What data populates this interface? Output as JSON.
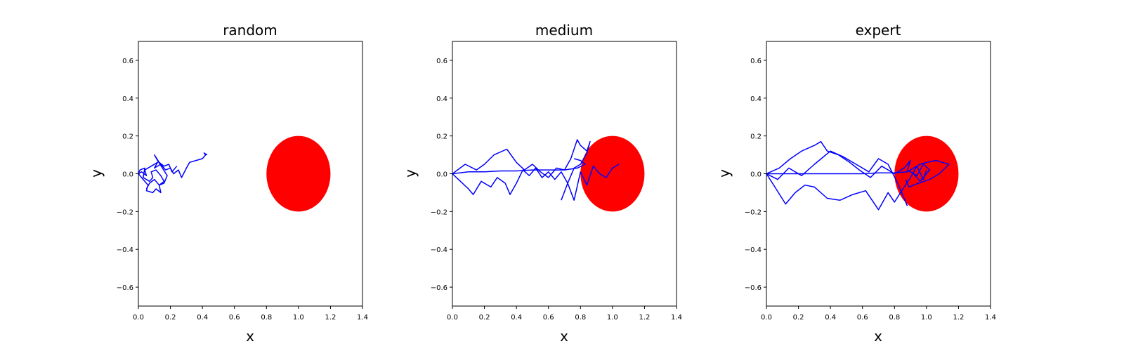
{
  "figure": {
    "background": "#ffffff"
  },
  "chart_data": [
    {
      "type": "line",
      "title": "random",
      "xlabel": "x",
      "ylabel": "y",
      "xlim": [
        0.0,
        1.4
      ],
      "ylim": [
        -0.7,
        0.7
      ],
      "xticks": [
        0.0,
        0.2,
        0.4,
        0.6,
        0.8,
        1.0,
        1.2,
        1.4
      ],
      "xtick_labels": [
        "0.0",
        "0.2",
        "0.4",
        "0.6",
        "0.8",
        "1.0",
        "1.2",
        "1.4"
      ],
      "yticks": [
        0.6,
        0.4,
        0.2,
        0.0,
        -0.2,
        -0.4,
        -0.6
      ],
      "ytick_labels": [
        "0.6",
        "0.4",
        "0.2",
        "0.0",
        "−0.2",
        "−0.4",
        "−0.6"
      ],
      "grid": false,
      "target": {
        "shape": "circle",
        "center": [
          1.0,
          0.0
        ],
        "radius": 0.2,
        "color": "#ff0000"
      },
      "line_color": "#0000ff",
      "series": [
        {
          "x": [
            0.0,
            0.02,
            0.05,
            0.04,
            0.08,
            0.12,
            0.1,
            0.14,
            0.17,
            0.2,
            0.22,
            0.25,
            0.27,
            0.3,
            0.32,
            0.36,
            0.4,
            0.42,
            0.41,
            0.43
          ],
          "y": [
            0.0,
            0.01,
            -0.01,
            0.02,
            0.04,
            0.06,
            0.03,
            0.05,
            0.02,
            0.03,
            0.0,
            0.02,
            -0.02,
            0.03,
            0.06,
            0.07,
            0.08,
            0.1,
            0.11,
            0.1
          ]
        },
        {
          "x": [
            0.0,
            0.03,
            0.06,
            0.05,
            0.09,
            0.11,
            0.14,
            0.13,
            0.16,
            0.18,
            0.15,
            0.12,
            0.1,
            0.13,
            0.16,
            0.19,
            0.21,
            0.24
          ],
          "y": [
            0.0,
            -0.03,
            -0.06,
            -0.09,
            -0.1,
            -0.08,
            -0.1,
            -0.06,
            -0.05,
            -0.01,
            0.03,
            0.07,
            0.1,
            0.06,
            0.04,
            0.05,
            0.01,
            0.04
          ]
        },
        {
          "x": [
            0.0,
            0.01,
            0.04,
            0.03,
            0.07,
            0.09,
            0.08,
            0.11,
            0.14,
            0.16,
            0.13,
            0.1,
            0.07,
            0.05
          ],
          "y": [
            0.0,
            0.02,
            0.03,
            -0.02,
            -0.04,
            -0.02,
            0.01,
            0.02,
            -0.01,
            -0.04,
            -0.06,
            -0.03,
            -0.05,
            -0.08
          ]
        }
      ]
    },
    {
      "type": "line",
      "title": "medium",
      "xlabel": "x",
      "ylabel": "y",
      "xlim": [
        0.0,
        1.4
      ],
      "ylim": [
        -0.7,
        0.7
      ],
      "xticks": [
        0.0,
        0.2,
        0.4,
        0.6,
        0.8,
        1.0,
        1.2,
        1.4
      ],
      "xtick_labels": [
        "0.0",
        "0.2",
        "0.4",
        "0.6",
        "0.8",
        "1.0",
        "1.2",
        "1.4"
      ],
      "yticks": [
        0.6,
        0.4,
        0.2,
        0.0,
        -0.2,
        -0.4,
        -0.6
      ],
      "ytick_labels": [
        "0.6",
        "0.4",
        "0.2",
        "0.0",
        "−0.2",
        "−0.4",
        "−0.6"
      ],
      "grid": false,
      "target": {
        "shape": "circle",
        "center": [
          1.0,
          0.0
        ],
        "radius": 0.2,
        "color": "#ff0000"
      },
      "line_color": "#0000ff",
      "series": [
        {
          "x": [
            0.0,
            0.08,
            0.15,
            0.2,
            0.26,
            0.34,
            0.4,
            0.45,
            0.5,
            0.55,
            0.6,
            0.65,
            0.7,
            0.74,
            0.78,
            0.8,
            0.84,
            0.86,
            0.84,
            0.8,
            0.76,
            0.72,
            0.68
          ],
          "y": [
            0.0,
            0.05,
            0.02,
            0.05,
            0.1,
            0.13,
            0.06,
            0.02,
            0.05,
            0.01,
            -0.02,
            0.03,
            0.02,
            0.08,
            0.18,
            0.15,
            0.12,
            0.17,
            0.11,
            0.05,
            0.03,
            -0.05,
            -0.14
          ]
        },
        {
          "x": [
            0.0,
            0.05,
            0.1,
            0.13,
            0.18,
            0.24,
            0.28,
            0.33,
            0.36,
            0.4,
            0.44,
            0.48,
            0.52,
            0.56,
            0.6,
            0.64,
            0.68,
            0.72,
            0.76,
            0.8,
            0.84,
            0.88,
            0.92,
            0.96,
            1.0,
            1.04
          ],
          "y": [
            0.0,
            -0.04,
            -0.08,
            -0.11,
            -0.04,
            -0.07,
            -0.02,
            -0.05,
            -0.11,
            -0.05,
            0.02,
            -0.01,
            0.03,
            -0.02,
            0.01,
            -0.03,
            0.01,
            -0.05,
            -0.14,
            0.01,
            -0.06,
            0.04,
            0.0,
            -0.02,
            0.03,
            0.05
          ]
        },
        {
          "x": [
            0.0,
            0.1,
            0.2,
            0.3,
            0.4,
            0.5,
            0.6,
            0.7,
            0.78,
            0.83,
            0.8,
            0.76
          ],
          "y": [
            0.0,
            0.01,
            0.01,
            0.015,
            0.015,
            0.02,
            0.02,
            0.02,
            0.03,
            0.05,
            0.07,
            0.08
          ]
        }
      ]
    },
    {
      "type": "line",
      "title": "expert",
      "xlabel": "x",
      "ylabel": "y",
      "xlim": [
        0.0,
        1.4
      ],
      "ylim": [
        -0.7,
        0.7
      ],
      "xticks": [
        0.0,
        0.2,
        0.4,
        0.6,
        0.8,
        1.0,
        1.2,
        1.4
      ],
      "xtick_labels": [
        "0.0",
        "0.2",
        "0.4",
        "0.6",
        "0.8",
        "1.0",
        "1.2",
        "1.4"
      ],
      "yticks": [
        0.6,
        0.4,
        0.2,
        0.0,
        -0.2,
        -0.4,
        -0.6
      ],
      "ytick_labels": [
        "0.6",
        "0.4",
        "0.2",
        "0.0",
        "−0.2",
        "−0.4",
        "−0.6"
      ],
      "grid": false,
      "target": {
        "shape": "circle",
        "center": [
          1.0,
          0.0
        ],
        "radius": 0.2,
        "color": "#ff0000"
      },
      "line_color": "#0000ff",
      "series": [
        {
          "x": [
            0.0,
            0.08,
            0.15,
            0.22,
            0.3,
            0.34,
            0.38,
            0.45,
            0.52,
            0.58,
            0.65,
            0.72,
            0.8,
            0.86,
            0.9,
            0.88,
            0.94,
            0.98,
            1.02,
            0.96,
            0.92
          ],
          "y": [
            0.0,
            0.03,
            0.08,
            0.12,
            0.15,
            0.17,
            0.12,
            0.1,
            0.06,
            0.02,
            -0.02,
            0.04,
            0.0,
            0.03,
            0.07,
            0.02,
            -0.01,
            0.05,
            0.02,
            -0.04,
            0.0
          ]
        },
        {
          "x": [
            0.0,
            0.06,
            0.12,
            0.18,
            0.24,
            0.3,
            0.38,
            0.46,
            0.54,
            0.62,
            0.7,
            0.76,
            0.8,
            0.86,
            0.9,
            0.94,
            0.98,
            1.0
          ],
          "y": [
            0.0,
            -0.08,
            -0.16,
            -0.1,
            -0.06,
            -0.07,
            -0.13,
            -0.14,
            -0.11,
            -0.09,
            -0.19,
            -0.1,
            -0.15,
            -0.07,
            -0.02,
            0.04,
            -0.03,
            0.02
          ]
        },
        {
          "x": [
            0.0,
            0.1,
            0.2,
            0.3,
            0.4,
            0.5,
            0.6,
            0.7,
            0.8,
            0.88,
            0.92,
            0.96,
            1.0,
            1.06,
            1.1,
            1.14,
            1.08,
            1.02,
            0.95,
            0.89,
            0.87
          ],
          "y": [
            0.0,
            0.0,
            0.0,
            0.0,
            0.0,
            0.0,
            0.0,
            0.005,
            0.005,
            0.01,
            0.03,
            0.05,
            0.06,
            0.07,
            0.06,
            0.05,
            0.0,
            -0.03,
            -0.05,
            -0.07,
            -0.03
          ]
        },
        {
          "x": [
            0.0,
            0.07,
            0.14,
            0.22,
            0.3,
            0.4,
            0.48,
            0.56,
            0.64,
            0.7,
            0.76,
            0.82,
            0.88
          ],
          "y": [
            0.0,
            -0.03,
            0.03,
            -0.01,
            0.05,
            0.12,
            0.09,
            0.05,
            0.01,
            0.08,
            0.05,
            -0.05,
            -0.17
          ]
        }
      ]
    }
  ]
}
